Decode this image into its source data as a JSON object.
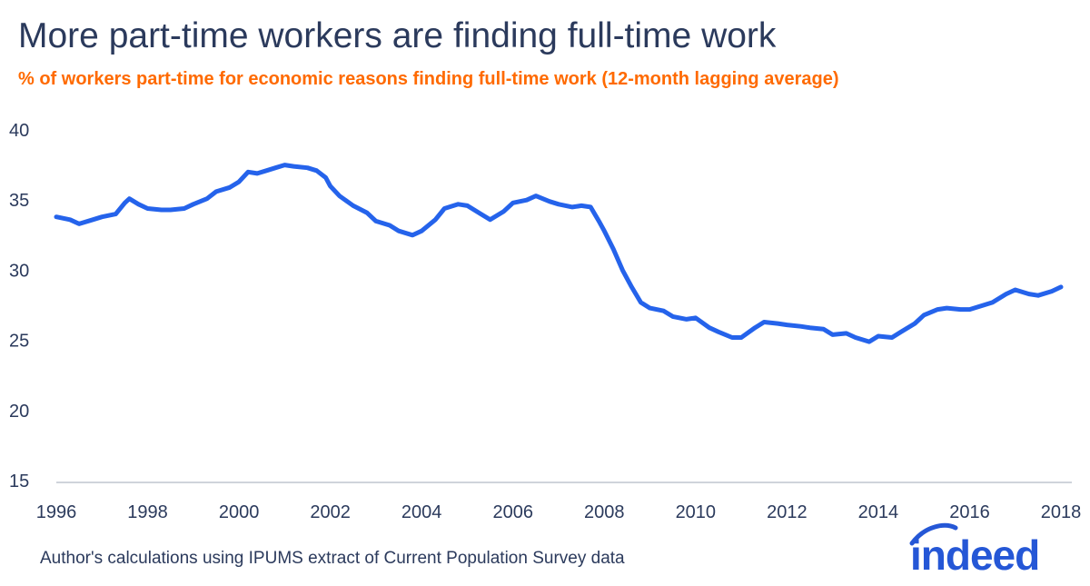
{
  "header": {
    "title": "More part-time workers are finding full-time work",
    "subtitle": "% of workers part-time for economic reasons finding full-time work (12-month lagging average)"
  },
  "footer": {
    "source": "Author's calculations using IPUMS extract of Current Population Survey data",
    "logo_text": "indeed"
  },
  "colors": {
    "line": "#2563eb",
    "title": "#2b3a5c",
    "subtitle": "#ff6a00",
    "logo": "#2557d6"
  },
  "chart_data": {
    "type": "line",
    "title": "More part-time workers are finding full-time work",
    "subtitle": "% of workers part-time for economic reasons finding full-time work (12-month lagging average)",
    "xlabel": "",
    "ylabel": "",
    "xlim": [
      1996,
      2018
    ],
    "ylim": [
      15,
      40
    ],
    "grid": false,
    "legend": "none",
    "x_ticks": [
      1996,
      1998,
      2000,
      2002,
      2004,
      2006,
      2008,
      2010,
      2012,
      2014,
      2016,
      2018
    ],
    "y_ticks": [
      15,
      20,
      25,
      30,
      35,
      40
    ],
    "series": [
      {
        "x": [
          1996.0,
          1996.3,
          1996.5,
          1996.8,
          1997.0,
          1997.3,
          1997.5,
          1997.6,
          1997.8,
          1998.0,
          1998.3,
          1998.5,
          1998.8,
          1999.0,
          1999.3,
          1999.5,
          1999.8,
          2000.0,
          2000.2,
          2000.4,
          2000.6,
          2000.8,
          2001.0,
          2001.2,
          2001.5,
          2001.7,
          2001.9,
          2002.0,
          2002.2,
          2002.5,
          2002.8,
          2003.0,
          2003.3,
          2003.5,
          2003.8,
          2004.0,
          2004.3,
          2004.5,
          2004.8,
          2005.0,
          2005.3,
          2005.5,
          2005.8,
          2006.0,
          2006.3,
          2006.5,
          2006.8,
          2007.0,
          2007.3,
          2007.5,
          2007.7,
          2007.9,
          2008.0,
          2008.2,
          2008.4,
          2008.6,
          2008.8,
          2009.0,
          2009.3,
          2009.5,
          2009.8,
          2010.0,
          2010.3,
          2010.5,
          2010.8,
          2011.0,
          2011.3,
          2011.5,
          2011.8,
          2012.0,
          2012.3,
          2012.5,
          2012.8,
          2013.0,
          2013.3,
          2013.5,
          2013.8,
          2014.0,
          2014.3,
          2014.5,
          2014.8,
          2015.0,
          2015.3,
          2015.5,
          2015.8,
          2016.0,
          2016.3,
          2016.5,
          2016.8,
          2017.0,
          2017.3,
          2017.5,
          2017.8,
          2018.0
        ],
        "values": [
          33.8,
          33.6,
          33.3,
          33.6,
          33.8,
          34.0,
          34.8,
          35.1,
          34.7,
          34.4,
          34.3,
          34.3,
          34.4,
          34.7,
          35.1,
          35.6,
          35.9,
          36.3,
          37.0,
          36.9,
          37.1,
          37.3,
          37.5,
          37.4,
          37.3,
          37.1,
          36.6,
          36.0,
          35.3,
          34.6,
          34.1,
          33.5,
          33.2,
          32.8,
          32.5,
          32.8,
          33.6,
          34.4,
          34.7,
          34.6,
          34.0,
          33.6,
          34.2,
          34.8,
          35.0,
          35.3,
          34.9,
          34.7,
          34.5,
          34.6,
          34.5,
          33.4,
          32.8,
          31.5,
          30.0,
          28.8,
          27.7,
          27.3,
          27.1,
          26.7,
          26.5,
          26.6,
          25.9,
          25.6,
          25.2,
          25.2,
          25.9,
          26.3,
          26.2,
          26.1,
          26.0,
          25.9,
          25.8,
          25.4,
          25.5,
          25.2,
          24.9,
          25.3,
          25.2,
          25.6,
          26.2,
          26.8,
          27.2,
          27.3,
          27.2,
          27.2,
          27.5,
          27.7,
          28.3,
          28.6,
          28.3,
          28.2,
          28.5,
          28.8
        ]
      }
    ]
  }
}
